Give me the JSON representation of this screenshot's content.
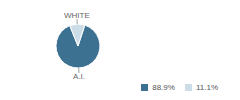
{
  "chart_data": {
    "type": "pie",
    "categories": [
      "A.I.",
      "WHITE"
    ],
    "values": [
      88.9,
      11.1
    ],
    "value_labels": [
      "88.9%",
      "11.1%"
    ],
    "colors": [
      "#3d7191",
      "#cddde8"
    ],
    "legend": "bottom"
  }
}
